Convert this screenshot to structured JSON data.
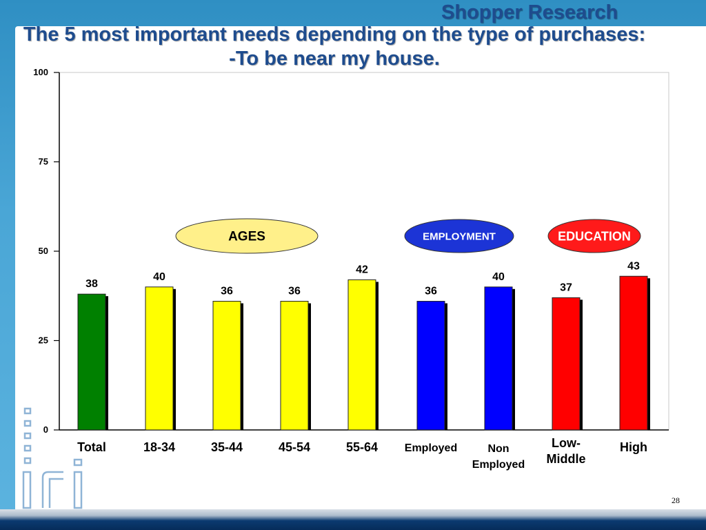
{
  "header": {
    "brand": "Shopper Research",
    "title_line1": "The 5 most important needs depending on the type of purchases:",
    "title_line2": "-To be near my house."
  },
  "colors": {
    "green": "#008000",
    "yellow": "#ffff00",
    "blue": "#0000ff",
    "red": "#ff0000",
    "title": "#1e4c8e",
    "ages_oval": "#fff08a",
    "employment_oval": "#1c34d6",
    "education_oval": "#ff1a1a"
  },
  "chart_data": {
    "type": "bar",
    "categories": [
      "Total",
      "18-34",
      "35-44",
      "45-54",
      "55-64",
      "Employed",
      "Non Employed",
      "Low-Middle",
      "High"
    ],
    "category_lines": [
      [
        "Total"
      ],
      [
        "18-34"
      ],
      [
        "35-44"
      ],
      [
        "45-54"
      ],
      [
        "55-64"
      ],
      [
        "Employed"
      ],
      [
        "Non",
        "Employed"
      ],
      [
        "Low-",
        "Middle"
      ],
      [
        "High"
      ]
    ],
    "values": [
      38,
      40,
      36,
      36,
      42,
      36,
      40,
      37,
      43
    ],
    "value_labels": [
      "38",
      "40",
      "36",
      "36",
      "42",
      "36",
      "40",
      "37",
      "43"
    ],
    "bar_colors": [
      "green",
      "yellow",
      "yellow",
      "yellow",
      "yellow",
      "blue",
      "blue",
      "red",
      "red"
    ],
    "ylim": [
      0,
      100
    ],
    "yticks": [
      0,
      25,
      50,
      75,
      100
    ],
    "groups": [
      {
        "label": "AGES",
        "style": "ages_oval",
        "text_color": "#000000"
      },
      {
        "label": "EMPLOYMENT",
        "style": "employment_oval",
        "text_color": "#ffffff"
      },
      {
        "label": "EDUCATION",
        "style": "education_oval",
        "text_color": "#ffffff"
      }
    ],
    "title": "The 5 most important needs depending on the type of purchases: -To be near my house.",
    "xlabel": "",
    "ylabel": "",
    "grid": false
  },
  "footer": {
    "slide_number": "28",
    "logo_text": "iri"
  }
}
